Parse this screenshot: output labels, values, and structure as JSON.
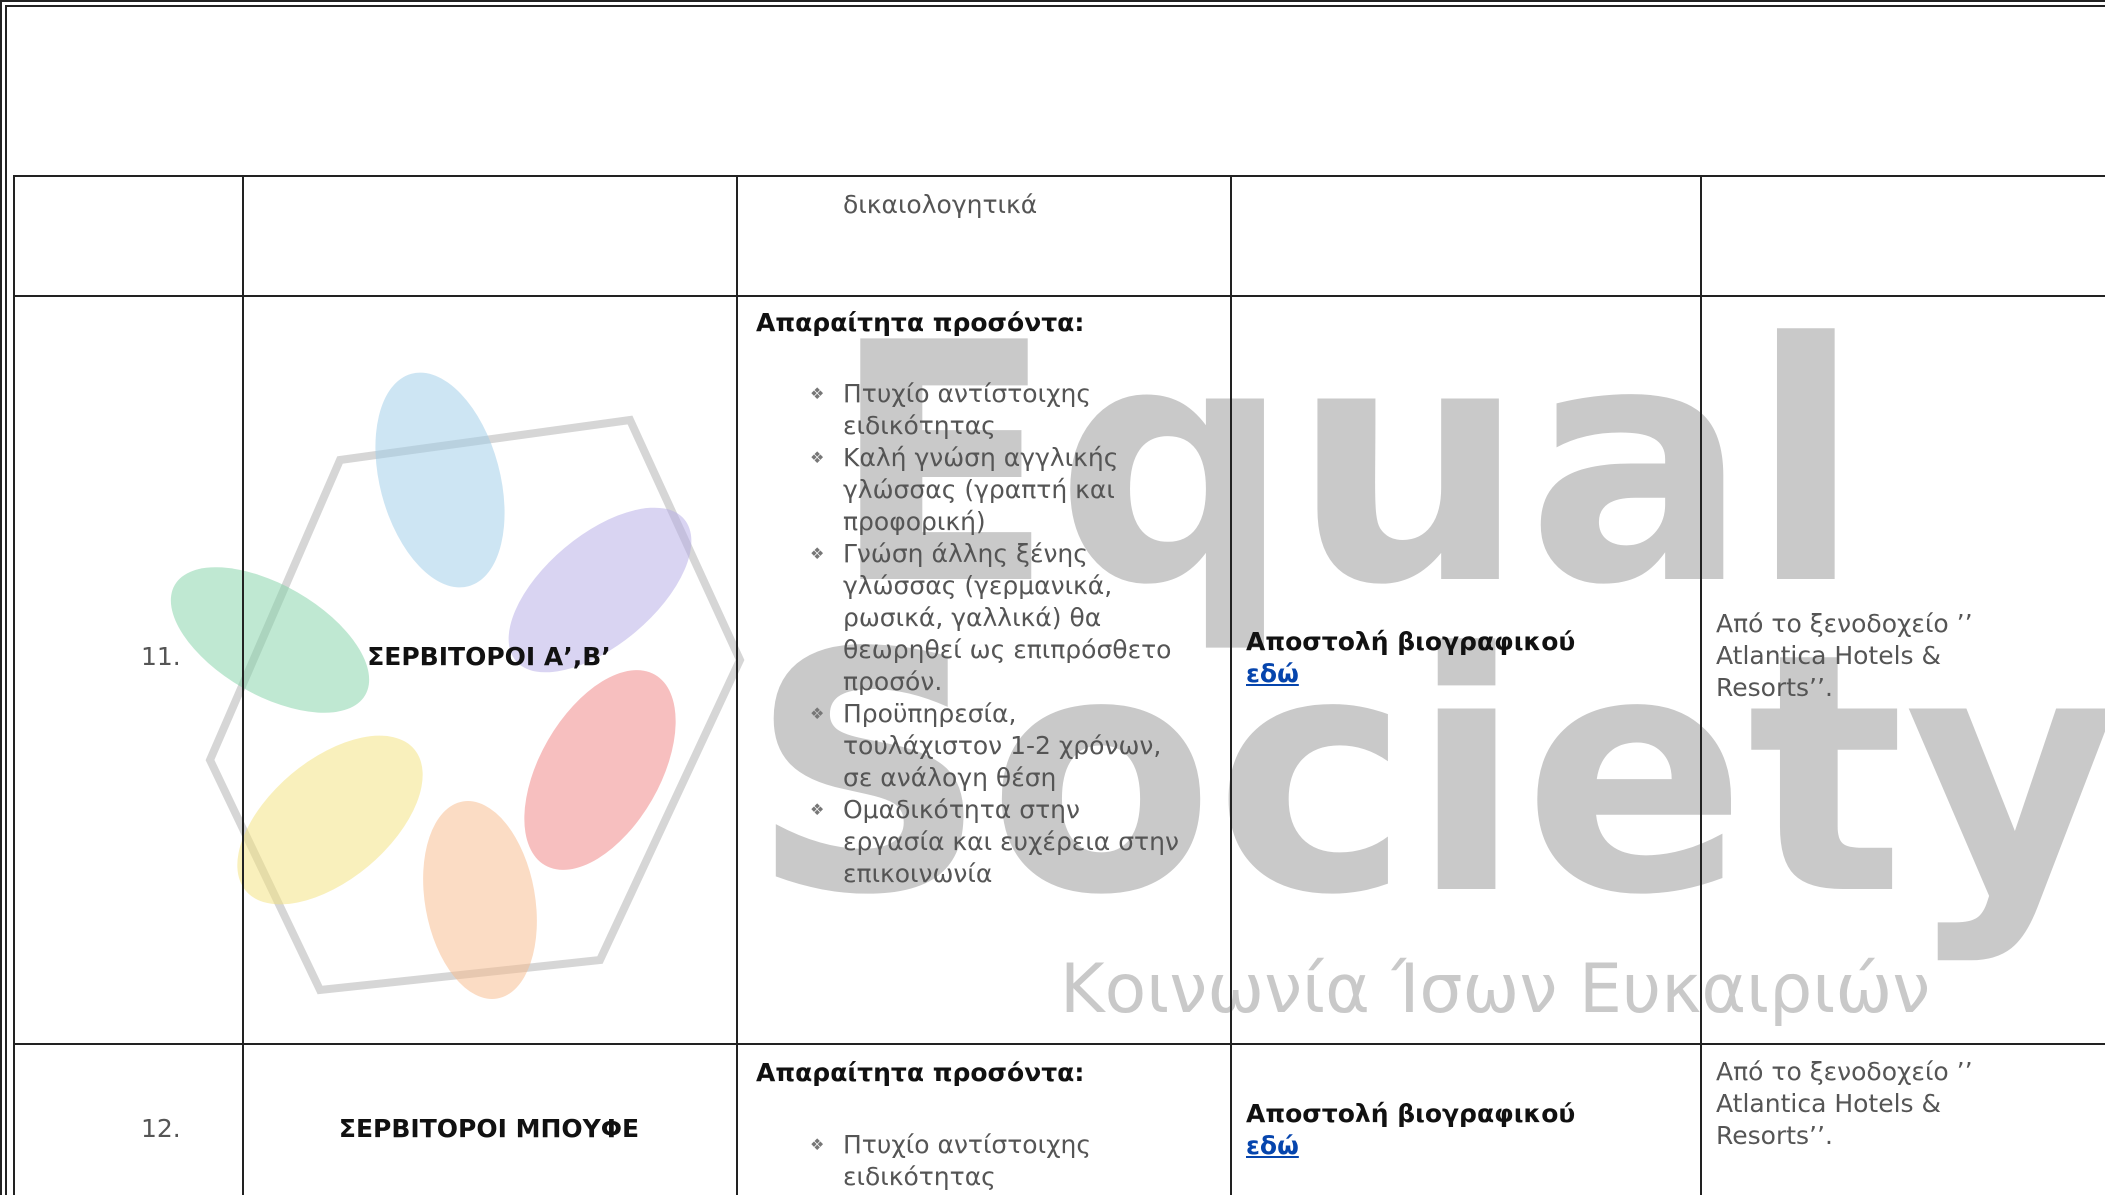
{
  "watermark": {
    "line1": "Equal",
    "line2": "Society",
    "tagline": "Κοινωνία Ίσων Ευκαιριών"
  },
  "table": {
    "row_top": {
      "requirements_tail": "δικαιολογητικά"
    },
    "rows": [
      {
        "number": "11.",
        "position": "ΣΕΡΒΙΤΟΡΟΙ Α’,Β’",
        "requirements_heading": "Απαραίτητα προσόντα:",
        "requirements": [
          "Πτυχίο αντίστοιχης ειδικότητας",
          "Καλή γνώση αγγλικής γλώσσας (γραπτή και προφορική)",
          "Γνώση άλλης ξένης γλώσσας (γερμανικά, ρωσικά, γαλλικά) θα θεωρηθεί ως επιπρόσθετο προσόν.",
          "Προϋπηρεσία, τουλάχιστον 1-2 χρόνων, σε ανάλογη θέση",
          "Ομαδικότητα στην εργασία και ευχέρεια στην επικοινωνία"
        ],
        "application": "Αποστολή βιογραφικού",
        "link": "εδώ",
        "source": "Από το ξενοδοχείο ’’ Atlantica Hotels & Resorts’’."
      },
      {
        "number": "12.",
        "position": "ΣΕΡΒΙΤΟΡΟΙ ΜΠΟΥΦΕ",
        "requirements_heading": "Απαραίτητα προσόντα:",
        "requirements": [
          "Πτυχίο αντίστοιχης ειδικότητας"
        ],
        "application": "Αποστολή βιογραφικού",
        "link": "εδώ",
        "source": "Από το ξενοδοχείο ’’ Atlantica Hotels & Resorts’’."
      }
    ]
  }
}
